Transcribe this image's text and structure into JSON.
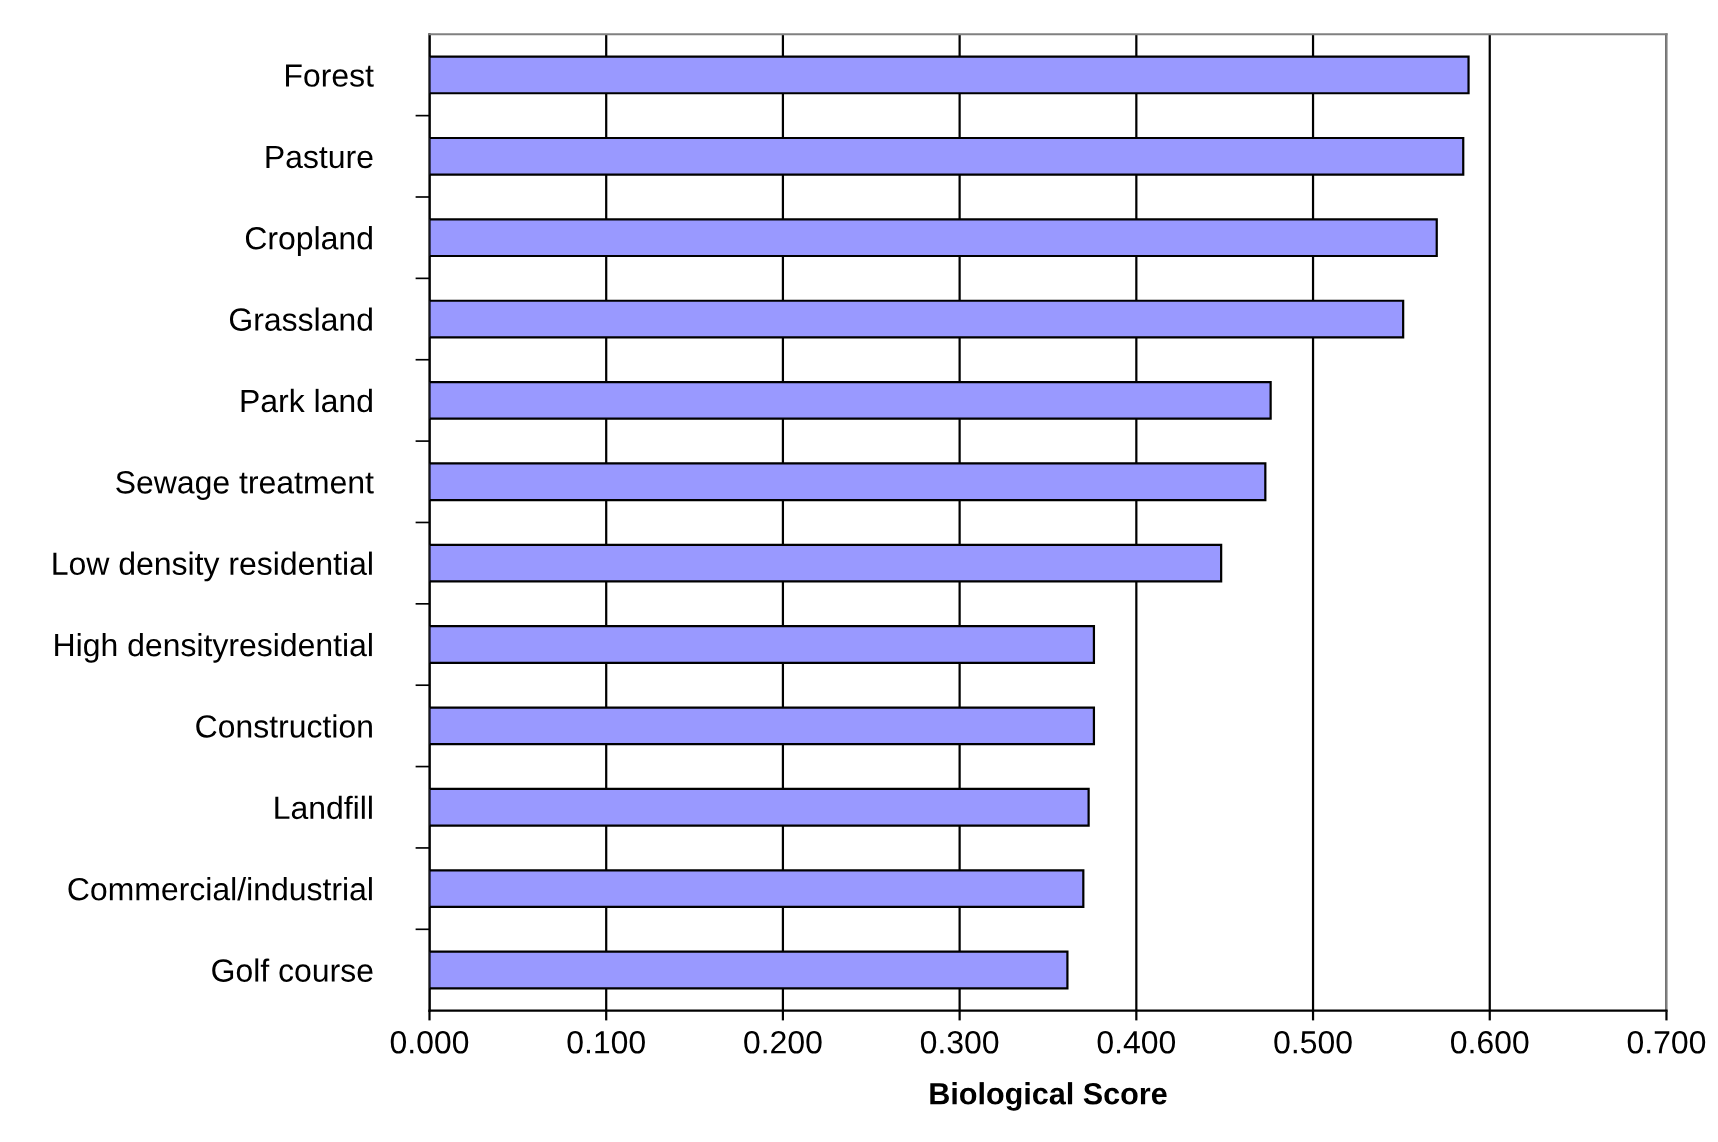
{
  "chart_data": {
    "type": "bar",
    "orientation": "horizontal",
    "xlabel": "Biological Score",
    "categories": [
      "Forest",
      "Pasture",
      "Cropland",
      "Grassland",
      "Park land",
      "Sewage treatment",
      "Low density residential",
      "High densityresidential",
      "Construction",
      "Landfill",
      "Commercial/industrial",
      "Golf course"
    ],
    "values": [
      0.588,
      0.585,
      0.57,
      0.551,
      0.476,
      0.473,
      0.448,
      0.376,
      0.376,
      0.373,
      0.37,
      0.361
    ],
    "color": "#9999ff",
    "xlim": [
      0,
      0.7
    ],
    "xticks": [
      {
        "value": 0,
        "label": "0.000"
      },
      {
        "value": 0.1,
        "label": "0.100"
      },
      {
        "value": 0.2,
        "label": "0.200"
      },
      {
        "value": 0.3,
        "label": "0.300"
      },
      {
        "value": 0.4,
        "label": "0.400"
      },
      {
        "value": 0.5,
        "label": "0.500"
      },
      {
        "value": 0.6,
        "label": "0.600"
      },
      {
        "value": 0.7,
        "label": "0.700"
      }
    ],
    "grid": "x"
  }
}
